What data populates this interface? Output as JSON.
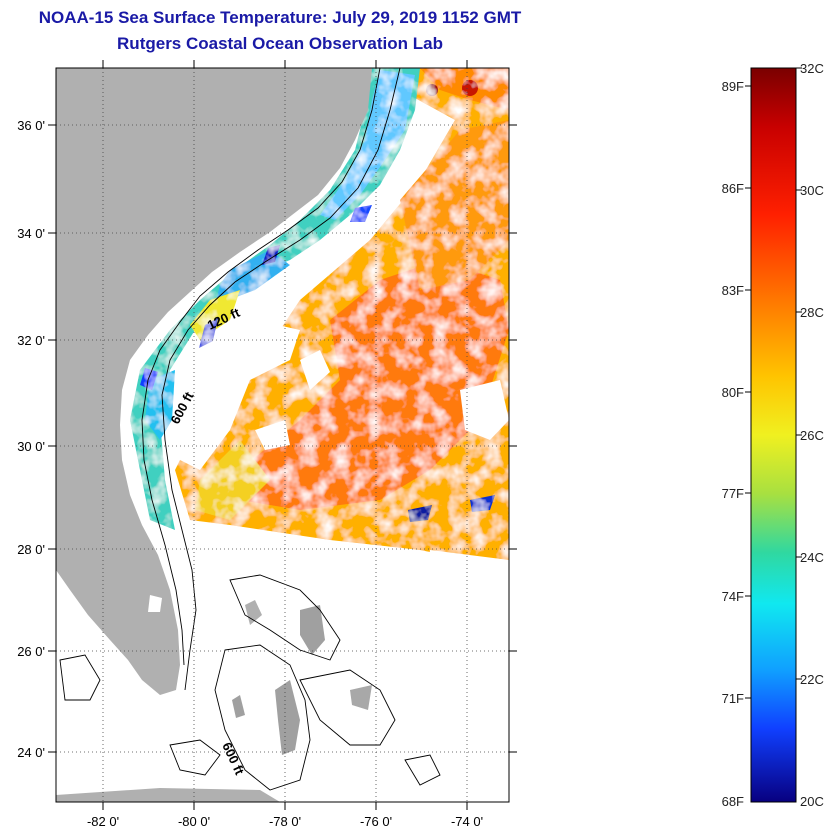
{
  "title": {
    "line1": "NOAA-15 Sea Surface Temperature:  July 29, 2019 1152 GMT",
    "line2": "Rutgers Coastal Ocean Observation Lab",
    "color": "#1a1aa6"
  },
  "map": {
    "land_color": "#b0b0b0",
    "lat_labels": [
      "36 0'",
      "34 0'",
      "32 0'",
      "30 0'",
      "28 0'",
      "26 0'",
      "24 0'"
    ],
    "lon_labels": [
      "-82 0'",
      "-80 0'",
      "-78 0'",
      "-76 0'",
      "-74 0'"
    ],
    "contour_labels": [
      "120 ft",
      "600 ft",
      "600 ft"
    ]
  },
  "colorbar": {
    "f_labels": [
      "89F",
      "86F",
      "83F",
      "80F",
      "77F",
      "74F",
      "71F",
      "68F"
    ],
    "c_labels": [
      "32C",
      "30C",
      "28C",
      "26C",
      "24C",
      "22C",
      "20C"
    ]
  }
}
